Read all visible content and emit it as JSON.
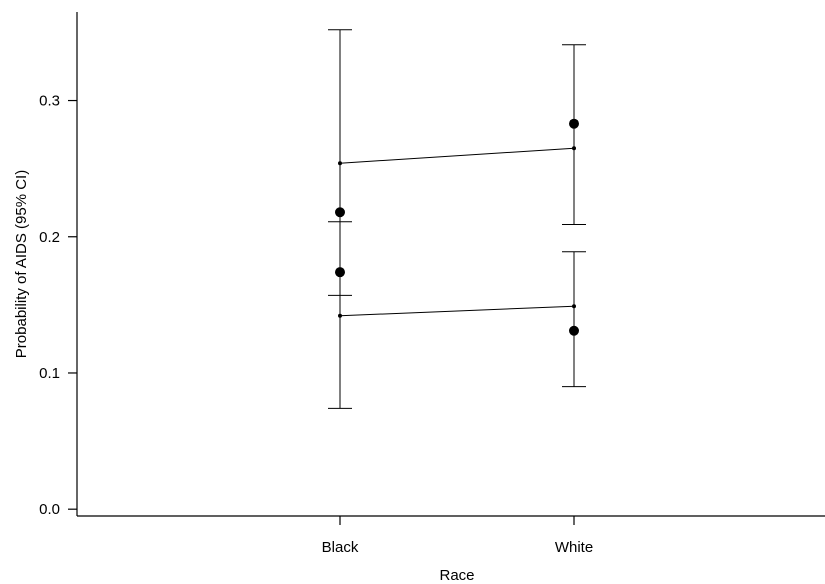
{
  "chart_data": {
    "type": "scatter",
    "xlabel": "Race",
    "ylabel": "Probability of AIDS (95% CI)",
    "categories": [
      "Black",
      "White"
    ],
    "y_ticks": [
      "0.0",
      "0.1",
      "0.2",
      "0.3"
    ],
    "ylim": [
      -0.005,
      0.365
    ],
    "grid": false,
    "series": [
      {
        "marker": "large-dot",
        "points": [
          {
            "x": "Black",
            "y": 0.218
          },
          {
            "x": "Black",
            "y": 0.174
          },
          {
            "x": "White",
            "y": 0.283
          },
          {
            "x": "White",
            "y": 0.131
          }
        ]
      },
      {
        "marker": "small-dot-line",
        "values": [
          0.254,
          0.265
        ],
        "lower": [
          0.157,
          0.209
        ],
        "upper": [
          0.352,
          0.341
        ]
      },
      {
        "marker": "small-dot-line",
        "values": [
          0.142,
          0.149
        ],
        "lower": [
          0.074,
          0.09
        ],
        "upper": [
          0.211,
          0.189
        ]
      }
    ]
  }
}
